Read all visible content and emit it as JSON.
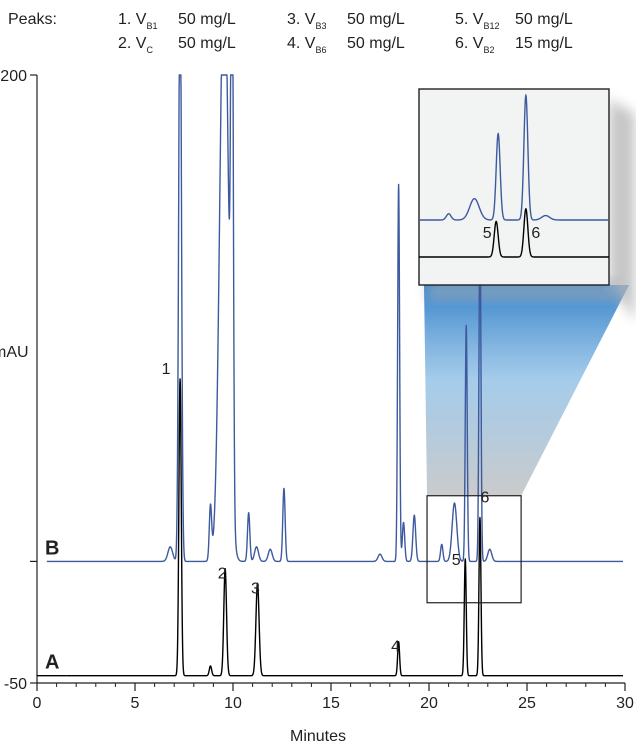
{
  "chart_data": {
    "type": "line",
    "xlabel": "Minutes",
    "ylabel": "mAU",
    "xlim": [
      0,
      30
    ],
    "ylim": [
      -50,
      200
    ],
    "xticks": [
      "0",
      "5",
      "10",
      "15",
      "20",
      "25",
      "30"
    ],
    "yticks": [
      "200",
      "-50"
    ],
    "grid": false,
    "peaks_legend": {
      "title": "Peaks:",
      "items": [
        {
          "num": "1.",
          "name": "V",
          "sub": "B1",
          "conc": "50 mg/L"
        },
        {
          "num": "2.",
          "name": "V",
          "sub": "C",
          "conc": "50 mg/L"
        },
        {
          "num": "3.",
          "name": "V",
          "sub": "B3",
          "conc": "50 mg/L"
        },
        {
          "num": "4.",
          "name": "V",
          "sub": "B6",
          "conc": "50 mg/L"
        },
        {
          "num": "5.",
          "name": "V",
          "sub": "B12",
          "conc": "50 mg/L"
        },
        {
          "num": "6.",
          "name": "V",
          "sub": "B2",
          "conc": "15 mg/L"
        }
      ]
    },
    "series": [
      {
        "name": "A",
        "color": "#000000",
        "baseline": -47,
        "peaks": [
          {
            "label": "1",
            "x": 7.3,
            "height": 122,
            "width": 0.06
          },
          {
            "x": 8.85,
            "height": 4,
            "width": 0.06
          },
          {
            "label": "2",
            "x": 9.6,
            "height": 44,
            "width": 0.07
          },
          {
            "label": "3",
            "x": 11.25,
            "height": 38,
            "width": 0.08
          },
          {
            "label": "4",
            "x": 18.45,
            "height": 14,
            "width": 0.05
          },
          {
            "label": "5",
            "x": 21.85,
            "height": 48,
            "width": 0.05
          },
          {
            "label": "6",
            "x": 22.6,
            "height": 65,
            "width": 0.05
          }
        ]
      },
      {
        "name": "B",
        "color": "#3d5a9e",
        "baseline": 0,
        "peaks": [
          {
            "x": 6.8,
            "height": 6,
            "width": 0.12
          },
          {
            "x": 7.3,
            "height": 250,
            "width": 0.07
          },
          {
            "x": 8.85,
            "height": 22,
            "width": 0.06
          },
          {
            "x": 9.55,
            "height": 250,
            "width": 0.22
          },
          {
            "x": 9.95,
            "height": 250,
            "width": 0.06
          },
          {
            "x": 10.8,
            "height": 20,
            "width": 0.06
          },
          {
            "x": 11.2,
            "height": 6,
            "width": 0.1
          },
          {
            "x": 11.9,
            "height": 5,
            "width": 0.1
          },
          {
            "x": 12.6,
            "height": 30,
            "width": 0.06
          },
          {
            "x": 17.5,
            "height": 3,
            "width": 0.1
          },
          {
            "x": 18.45,
            "height": 155,
            "width": 0.05
          },
          {
            "x": 18.7,
            "height": 16,
            "width": 0.06
          },
          {
            "x": 19.25,
            "height": 19,
            "width": 0.07
          },
          {
            "x": 20.65,
            "height": 7,
            "width": 0.06
          },
          {
            "x": 21.3,
            "height": 24,
            "width": 0.12
          },
          {
            "x": 21.9,
            "height": 97,
            "width": 0.05
          },
          {
            "x": 22.6,
            "height": 140,
            "width": 0.05
          },
          {
            "x": 23.1,
            "height": 5,
            "width": 0.1
          }
        ]
      }
    ],
    "zoom_region": {
      "x": [
        19.9,
        24.7
      ],
      "y": [
        -17,
        27
      ]
    },
    "inset_labels": [
      "5",
      "6"
    ]
  }
}
